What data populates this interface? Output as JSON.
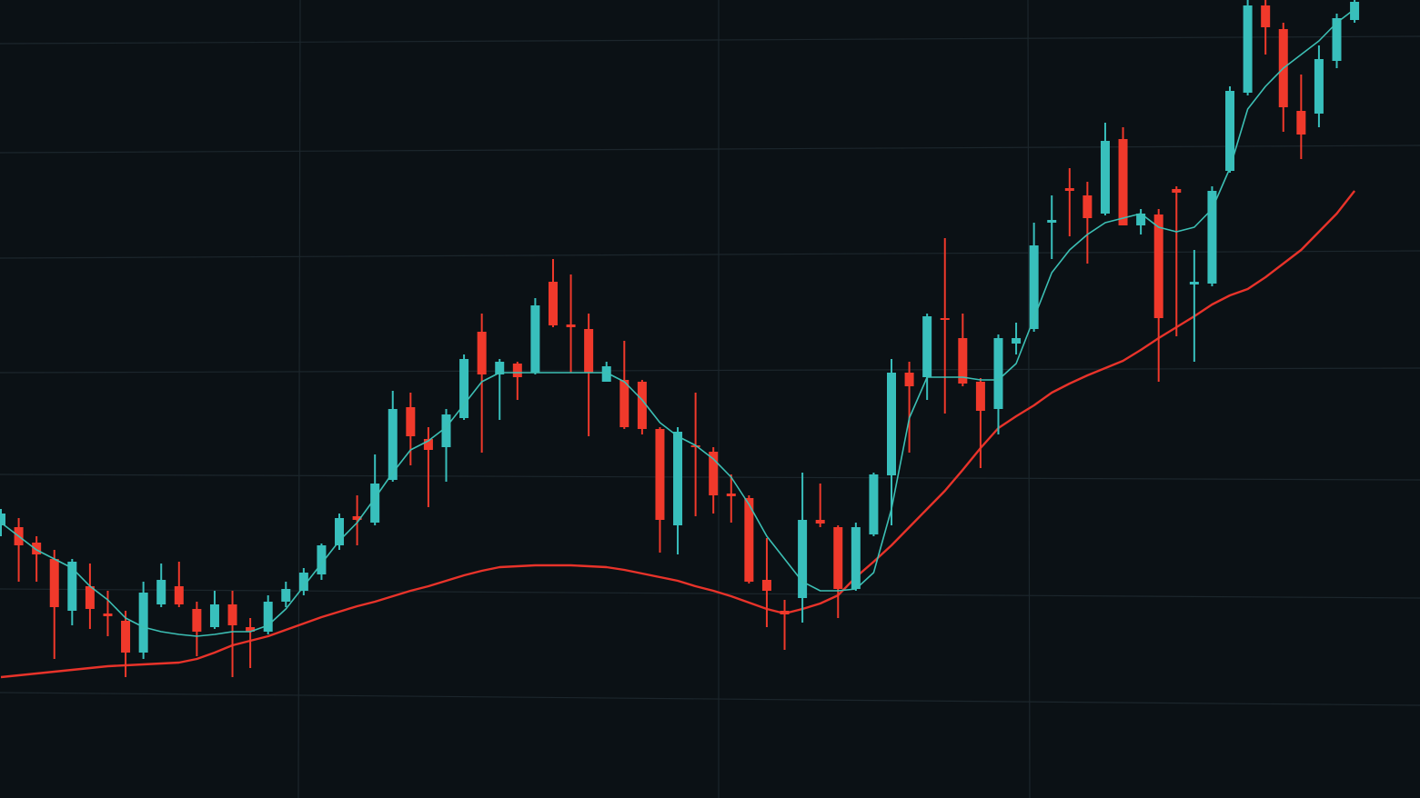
{
  "chart_data": {
    "type": "candlestick",
    "categories": [
      null,
      null,
      null,
      null,
      null,
      null,
      null,
      null,
      null,
      null,
      null,
      null,
      null,
      null,
      null,
      null,
      null,
      null,
      null,
      null,
      null,
      null,
      null,
      null,
      null,
      null,
      null,
      null,
      null,
      null,
      null,
      null,
      null,
      null,
      null,
      null,
      null,
      null,
      null,
      null,
      null,
      null,
      null,
      null,
      null,
      null,
      null,
      null,
      null,
      null,
      null,
      null,
      null,
      null,
      null,
      null,
      null,
      null,
      null,
      null,
      null,
      null,
      null,
      null,
      null,
      null,
      null,
      null,
      null,
      null,
      null,
      null,
      null,
      null,
      null,
      null,
      null
    ],
    "open": [
      300,
      298,
      281,
      263,
      206,
      233,
      203,
      195,
      160,
      213,
      233,
      208,
      188,
      213,
      188,
      183,
      216,
      228,
      246,
      278,
      310,
      303,
      350,
      430,
      395,
      386,
      418,
      513,
      466,
      478,
      468,
      568,
      521,
      516,
      458,
      460,
      458,
      406,
      300,
      388,
      381,
      335,
      330,
      240,
      206,
      220,
      306,
      298,
      230,
      290,
      355,
      468,
      463,
      528,
      506,
      458,
      428,
      500,
      516,
      633,
      671,
      663,
      643,
      725,
      630,
      642,
      670,
      565,
      566,
      690,
      776,
      872,
      846,
      756,
      753,
      811,
      856
    ],
    "high": [
      318,
      308,
      288,
      273,
      263,
      258,
      228,
      206,
      238,
      258,
      260,
      216,
      228,
      228,
      198,
      223,
      238,
      253,
      280,
      313,
      333,
      378,
      448,
      446,
      408,
      428,
      488,
      533,
      483,
      480,
      550,
      593,
      576,
      533,
      480,
      503,
      460,
      408,
      408,
      446,
      386,
      356,
      333,
      286,
      218,
      358,
      346,
      300,
      303,
      358,
      483,
      480,
      533,
      616,
      533,
      462,
      510,
      523,
      633,
      663,
      693,
      678,
      743,
      738,
      648,
      648,
      673,
      603,
      673,
      783,
      878,
      878,
      853,
      796,
      828,
      863,
      878
    ],
    "low": [
      288,
      238,
      238,
      153,
      190,
      186,
      178,
      133,
      153,
      210,
      210,
      156,
      186,
      133,
      143,
      180,
      210,
      223,
      240,
      273,
      278,
      300,
      348,
      366,
      320,
      348,
      416,
      380,
      416,
      438,
      466,
      518,
      468,
      398,
      458,
      406,
      400,
      270,
      268,
      310,
      313,
      303,
      236,
      188,
      163,
      193,
      298,
      198,
      228,
      288,
      300,
      380,
      438,
      423,
      453,
      363,
      400,
      488,
      513,
      593,
      618,
      588,
      641,
      630,
      620,
      458,
      508,
      480,
      563,
      688,
      773,
      818,
      733,
      703,
      738,
      803,
      853
    ],
    "close": [
      313,
      278,
      268,
      210,
      260,
      208,
      200,
      160,
      226,
      240,
      213,
      183,
      213,
      190,
      183,
      216,
      230,
      248,
      278,
      308,
      306,
      346,
      428,
      398,
      383,
      422,
      483,
      466,
      480,
      463,
      542,
      520,
      518,
      468,
      475,
      408,
      406,
      306,
      403,
      386,
      333,
      332,
      238,
      228,
      202,
      306,
      302,
      230,
      298,
      356,
      468,
      453,
      530,
      526,
      456,
      426,
      506,
      506,
      608,
      636,
      668,
      638,
      723,
      630,
      643,
      528,
      666,
      568,
      668,
      778,
      872,
      848,
      760,
      730,
      813,
      858,
      876
    ],
    "up_color": "#38bfbc",
    "down_color": "#f0392b",
    "series": [
      {
        "color": "#3cbfb4",
        "values": [
          303,
          288,
          273,
          263,
          253,
          233,
          218,
          198,
          188,
          183,
          180,
          178,
          180,
          183,
          183,
          190,
          208,
          233,
          258,
          283,
          303,
          330,
          358,
          383,
          393,
          408,
          433,
          458,
          468,
          468,
          468,
          468,
          468,
          468,
          468,
          458,
          438,
          413,
          398,
          388,
          373,
          353,
          323,
          288,
          263,
          238,
          228,
          228,
          230,
          248,
          318,
          418,
          463,
          463,
          463,
          460,
          460,
          478,
          528,
          578,
          603,
          620,
          633,
          638,
          643,
          628,
          623,
          628,
          648,
          693,
          758,
          783,
          803,
          818,
          833,
          853,
          868
        ]
      },
      {
        "color": "#e8332a",
        "values": [
          133,
          135,
          137,
          139,
          141,
          143,
          145,
          146,
          147,
          148,
          149,
          153,
          160,
          168,
          173,
          178,
          185,
          192,
          199,
          205,
          211,
          216,
          222,
          228,
          233,
          239,
          245,
          250,
          254,
          255,
          256,
          256,
          256,
          255,
          254,
          251,
          247,
          243,
          239,
          233,
          228,
          222,
          215,
          208,
          203,
          208,
          214,
          223,
          243,
          260,
          278,
          298,
          318,
          338,
          361,
          385,
          407,
          420,
          432,
          446,
          456,
          465,
          473,
          481,
          493,
          506,
          518,
          530,
          543,
          553,
          560,
          573,
          588,
          603,
          623,
          643,
          668
        ]
      }
    ],
    "ylim": [
      0,
      878
    ]
  }
}
